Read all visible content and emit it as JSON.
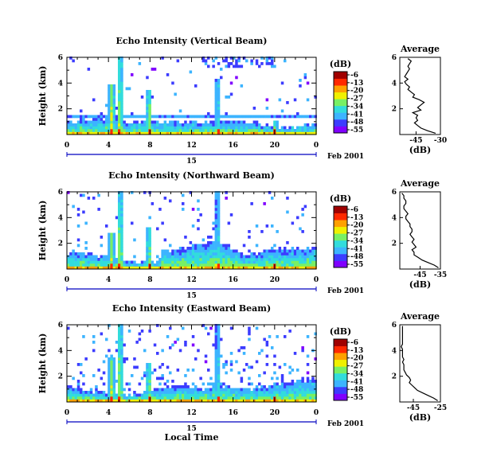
{
  "chart_data": [
    {
      "type": "heatmap",
      "title": "Echo Intensity (Vertical Beam)",
      "ylabel": "Height (km)",
      "ylim": [
        0,
        6
      ],
      "yticks": [
        "6",
        "4",
        "2"
      ],
      "xlim": [
        0,
        24
      ],
      "xticks": [
        "0",
        "4",
        "8",
        "12",
        "16",
        "20",
        "0"
      ],
      "date_label": "15",
      "date_suffix": "Feb 2001",
      "colorbar": {
        "label": "(dB)",
        "ticks": [
          "-6",
          "-13",
          "-20",
          "-27",
          "-34",
          "-41",
          "-48",
          "-55"
        ]
      },
      "profile": {
        "title": "Average",
        "xlabel": "(dB)",
        "xlim": [
          -55,
          -30
        ],
        "xticks": [
          "-45",
          "-30"
        ],
        "yticks": [
          "6",
          "4",
          "2"
        ],
        "ylim": [
          0,
          6
        ],
        "heights": [
          0.1,
          0.3,
          0.5,
          0.7,
          0.9,
          1.1,
          1.3,
          1.5,
          1.7,
          1.9,
          2.1,
          2.3,
          2.5,
          2.7,
          2.9,
          3.1,
          3.3,
          3.5,
          3.7,
          3.9,
          4.1,
          4.3,
          4.5,
          4.7,
          4.9,
          5.1,
          5.3,
          5.5,
          5.7,
          5.9
        ],
        "values": [
          -33,
          -38,
          -42,
          -44,
          -46,
          -44,
          -45,
          -44,
          -47,
          -42,
          -44,
          -42,
          -40,
          -43,
          -47,
          -46,
          -48,
          -50,
          -49,
          -51,
          -52,
          -50,
          -52,
          -51,
          -50,
          -49,
          -50,
          -49,
          -48,
          -50
        ]
      },
      "events": [
        {
          "t": 4.3,
          "top": 3.8,
          "i": 0.6
        },
        {
          "t": 5.1,
          "top": 6.0,
          "i": 0.6
        },
        {
          "t": 7.9,
          "top": 3.5,
          "i": 0.55
        },
        {
          "t": 14.5,
          "top": 4.3,
          "i": 0.4
        },
        {
          "t": 20.0,
          "top": 1.0,
          "i": 0.45
        }
      ]
    },
    {
      "type": "heatmap",
      "title": "Echo Intensity (Northward Beam)",
      "ylabel": "Height (km)",
      "ylim": [
        0,
        6
      ],
      "yticks": [
        "6",
        "4",
        "2"
      ],
      "xlim": [
        0,
        24
      ],
      "xticks": [
        "0",
        "4",
        "8",
        "12",
        "16",
        "20",
        "0"
      ],
      "date_label": "15",
      "date_suffix": "Feb 2001",
      "colorbar": {
        "label": "(dB)",
        "ticks": [
          "-6",
          "-13",
          "-20",
          "-27",
          "-34",
          "-41",
          "-48",
          "-55"
        ]
      },
      "profile": {
        "title": "Average",
        "xlabel": "(dB)",
        "xlim": [
          -55,
          -35
        ],
        "xticks": [
          "-45",
          "-35"
        ],
        "yticks": [
          "6",
          "4",
          "2"
        ],
        "ylim": [
          0,
          6
        ],
        "heights": [
          0.1,
          0.3,
          0.5,
          0.7,
          0.9,
          1.1,
          1.3,
          1.5,
          1.7,
          1.9,
          2.1,
          2.3,
          2.5,
          2.7,
          2.9,
          3.1,
          3.3,
          3.5,
          3.7,
          3.9,
          4.1,
          4.3,
          4.5,
          4.7,
          4.9,
          5.1,
          5.3,
          5.5,
          5.7,
          5.9
        ],
        "values": [
          -36,
          -38,
          -41,
          -44,
          -46,
          -48,
          -48,
          -49,
          -47,
          -48,
          -49,
          -48,
          -49,
          -50,
          -49,
          -49,
          -50,
          -50,
          -51,
          -52,
          -52,
          -51,
          -52,
          -53,
          -53,
          -52,
          -52,
          -53,
          -53,
          -54
        ]
      },
      "events": [
        {
          "t": 4.3,
          "top": 2.8,
          "i": 0.55
        },
        {
          "t": 5.1,
          "top": 6.0,
          "i": 0.6
        },
        {
          "t": 7.9,
          "top": 3.3,
          "i": 0.5
        },
        {
          "t": 14.5,
          "top": 6.0,
          "i": 0.4
        },
        {
          "t": 20.0,
          "top": 0.7,
          "i": 0.4
        }
      ]
    },
    {
      "type": "heatmap",
      "title": "Echo Intensity (Eastward Beam)",
      "ylabel": "Height (km)",
      "ylim": [
        0,
        6
      ],
      "yticks": [
        "6",
        "4",
        "2"
      ],
      "xlim": [
        0,
        24
      ],
      "xticks": [
        "0",
        "4",
        "8",
        "12",
        "16",
        "20",
        "0"
      ],
      "date_label": "15",
      "date_suffix": "Feb 2001",
      "xlabel": "Local Time",
      "colorbar": {
        "label": "(dB)",
        "ticks": [
          "-6",
          "-13",
          "-20",
          "-27",
          "-34",
          "-41",
          "-48",
          "-55"
        ]
      },
      "profile": {
        "title": "Average",
        "xlabel": "(dB)",
        "xlim": [
          -55,
          -25
        ],
        "xticks": [
          "-45",
          "-25"
        ],
        "yticks": [
          "6",
          "4",
          "2"
        ],
        "ylim": [
          0,
          6
        ],
        "heights": [
          0.1,
          0.3,
          0.5,
          0.7,
          0.9,
          1.1,
          1.3,
          1.5,
          1.7,
          1.9,
          2.1,
          2.3,
          2.5,
          2.7,
          2.9,
          3.1,
          3.3,
          3.5,
          3.7,
          3.9,
          4.1,
          4.3,
          4.5,
          4.7,
          4.9,
          5.1,
          5.3,
          5.5,
          5.7,
          5.9
        ],
        "values": [
          -27,
          -30,
          -34,
          -38,
          -42,
          -44,
          -46,
          -48,
          -47,
          -48,
          -50,
          -51,
          -52,
          -52,
          -52,
          -53,
          -52,
          -53,
          -53,
          -53,
          -53,
          -54,
          -53,
          -53,
          -53,
          -53,
          -53,
          -53,
          -53,
          -53
        ]
      },
      "events": [
        {
          "t": 4.3,
          "top": 3.5,
          "i": 0.55
        },
        {
          "t": 5.1,
          "top": 6.0,
          "i": 0.6
        },
        {
          "t": 7.9,
          "top": 3.0,
          "i": 0.5
        },
        {
          "t": 14.5,
          "top": 6.0,
          "i": 0.4
        },
        {
          "t": 20.0,
          "top": 0.8,
          "i": 0.45
        }
      ]
    }
  ],
  "colors": {
    "scale": [
      "#8000ff",
      "#3c3cff",
      "#3cb4ff",
      "#32dcdc",
      "#78f064",
      "#f0f000",
      "#ffa000",
      "#ff2800",
      "#a00000"
    ],
    "axis": "#000000",
    "date_rule": "#0000c0"
  }
}
